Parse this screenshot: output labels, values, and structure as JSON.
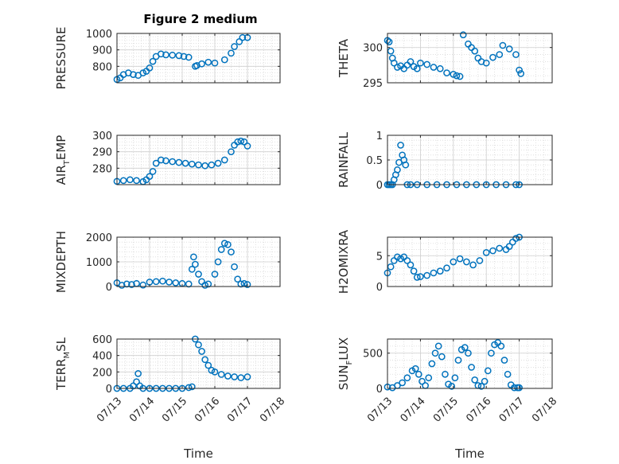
{
  "figure": {
    "title": "Figure 2 medium"
  },
  "style": {
    "marker_color": "#0072BD",
    "grid_color": "#d9d9d9",
    "axis_color": "#262626"
  },
  "chart_data": [
    {
      "type": "scatter",
      "ylabel": "PRESSURE",
      "ylabel_sub": "",
      "xlabel": "",
      "ylim": [
        700,
        1000
      ],
      "yticks": [
        800,
        900,
        1000
      ],
      "xlim": [
        0,
        5
      ],
      "xticks": [
        0,
        1,
        2,
        3,
        4,
        5
      ],
      "xticklabels": [],
      "x": [
        0.0,
        0.1,
        0.2,
        0.35,
        0.5,
        0.65,
        0.8,
        0.9,
        1.0,
        1.1,
        1.2,
        1.35,
        1.5,
        1.7,
        1.9,
        2.05,
        2.2,
        2.4,
        2.45,
        2.6,
        2.8,
        3.0,
        3.3,
        3.5,
        3.6,
        3.75,
        3.85,
        4.0
      ],
      "y": [
        720,
        730,
        750,
        760,
        750,
        745,
        760,
        770,
        790,
        830,
        860,
        875,
        870,
        868,
        865,
        860,
        855,
        800,
        805,
        815,
        825,
        820,
        840,
        880,
        920,
        950,
        975,
        975
      ]
    },
    {
      "type": "scatter",
      "ylabel": "THETA",
      "ylabel_sub": "",
      "xlabel": "",
      "ylim": [
        295,
        302
      ],
      "yticks": [
        295,
        300
      ],
      "xlim": [
        0,
        5
      ],
      "xticks": [
        0,
        1,
        2,
        3,
        4,
        5
      ],
      "xticklabels": [],
      "x": [
        0.0,
        0.05,
        0.1,
        0.15,
        0.2,
        0.3,
        0.4,
        0.5,
        0.6,
        0.7,
        0.8,
        0.9,
        1.0,
        1.2,
        1.4,
        1.6,
        1.8,
        2.0,
        2.1,
        2.2,
        2.3,
        2.45,
        2.55,
        2.65,
        2.75,
        2.85,
        3.0,
        3.2,
        3.4,
        3.5,
        3.7,
        3.9,
        4.0,
        4.05
      ],
      "y": [
        301,
        300.8,
        299.5,
        298.5,
        297.8,
        297.2,
        297.4,
        297.0,
        297.5,
        298.0,
        297.3,
        297.0,
        297.8,
        297.6,
        297.2,
        297.0,
        296.4,
        296.2,
        296.0,
        295.9,
        301.8,
        300.5,
        300.0,
        299.5,
        298.5,
        298.0,
        297.8,
        298.6,
        299.0,
        300.3,
        299.8,
        299.0,
        296.8,
        296.3
      ]
    },
    {
      "type": "scatter",
      "ylabel": "AIR",
      "ylabel_sub": "T",
      "ylabel_rest": "EMP",
      "xlabel": "",
      "ylim": [
        270,
        300
      ],
      "yticks": [
        280,
        290,
        300
      ],
      "xlim": [
        0,
        5
      ],
      "xticks": [
        0,
        1,
        2,
        3,
        4,
        5
      ],
      "xticklabels": [],
      "x": [
        0.0,
        0.2,
        0.4,
        0.6,
        0.8,
        0.9,
        1.0,
        1.1,
        1.2,
        1.35,
        1.5,
        1.7,
        1.9,
        2.1,
        2.3,
        2.5,
        2.7,
        2.9,
        3.1,
        3.3,
        3.5,
        3.6,
        3.7,
        3.8,
        3.9,
        4.0
      ],
      "y": [
        272,
        272.5,
        273,
        272.5,
        271.8,
        273,
        275,
        278,
        283,
        285,
        284.5,
        284,
        283.5,
        283,
        282.5,
        282,
        281.5,
        282,
        283,
        285,
        290,
        294,
        296,
        296.5,
        296,
        293.5
      ]
    },
    {
      "type": "scatter",
      "ylabel": "RAINFALL",
      "ylabel_sub": "",
      "xlabel": "",
      "ylim": [
        0,
        1
      ],
      "yticks": [
        0,
        0.5,
        1
      ],
      "xlim": [
        0,
        5
      ],
      "xticks": [
        0,
        1,
        2,
        3,
        4,
        5
      ],
      "xticklabels": [],
      "x": [
        0.0,
        0.05,
        0.1,
        0.15,
        0.2,
        0.25,
        0.3,
        0.35,
        0.4,
        0.45,
        0.5,
        0.55,
        0.6,
        0.7,
        0.9,
        1.2,
        1.5,
        1.8,
        2.1,
        2.4,
        2.7,
        3.0,
        3.3,
        3.6,
        3.9,
        4.0
      ],
      "y": [
        0,
        0,
        0,
        0,
        0.1,
        0.2,
        0.3,
        0.45,
        0.8,
        0.6,
        0.5,
        0.4,
        0,
        0,
        0,
        0,
        0,
        0,
        0,
        0,
        0,
        0,
        0,
        0,
        0,
        0
      ]
    },
    {
      "type": "scatter",
      "ylabel": "MIXDEPTH",
      "ylabel_sub": "",
      "xlabel": "",
      "ylim": [
        0,
        2000
      ],
      "yticks": [
        0,
        1000,
        2000
      ],
      "xlim": [
        0,
        5
      ],
      "xticks": [
        0,
        1,
        2,
        3,
        4,
        5
      ],
      "xticklabels": [],
      "x": [
        0.0,
        0.15,
        0.3,
        0.45,
        0.6,
        0.8,
        1.0,
        1.2,
        1.4,
        1.6,
        1.8,
        2.0,
        2.2,
        2.3,
        2.35,
        2.4,
        2.5,
        2.6,
        2.7,
        2.8,
        3.0,
        3.1,
        3.2,
        3.3,
        3.4,
        3.5,
        3.6,
        3.7,
        3.8,
        3.9,
        4.0
      ],
      "y": [
        150,
        50,
        100,
        80,
        120,
        60,
        180,
        200,
        220,
        180,
        150,
        120,
        100,
        700,
        1200,
        900,
        500,
        200,
        50,
        100,
        500,
        1000,
        1500,
        1750,
        1700,
        1400,
        800,
        300,
        100,
        120,
        80
      ]
    },
    {
      "type": "scatter",
      "ylabel": "H2OMIXRA",
      "ylabel_sub": "",
      "xlabel": "",
      "ylim": [
        0,
        8
      ],
      "yticks": [
        0,
        5
      ],
      "xlim": [
        0,
        5
      ],
      "xticks": [
        0,
        1,
        2,
        3,
        4,
        5
      ],
      "xticklabels": [],
      "x": [
        0.0,
        0.1,
        0.2,
        0.3,
        0.4,
        0.5,
        0.6,
        0.7,
        0.8,
        0.9,
        1.0,
        1.2,
        1.4,
        1.6,
        1.8,
        2.0,
        2.2,
        2.4,
        2.6,
        2.8,
        3.0,
        3.2,
        3.4,
        3.6,
        3.7,
        3.8,
        3.9,
        4.0
      ],
      "y": [
        2.2,
        3.2,
        4.2,
        4.8,
        4.5,
        4.8,
        4.2,
        3.5,
        2.5,
        1.5,
        1.6,
        1.8,
        2.2,
        2.5,
        3.0,
        4.0,
        4.5,
        4.0,
        3.5,
        4.2,
        5.5,
        5.8,
        6.2,
        6.0,
        6.5,
        7.2,
        7.8,
        8.0
      ]
    },
    {
      "type": "scatter",
      "ylabel": "TERR",
      "ylabel_sub": "M",
      "ylabel_rest": "SL",
      "xlabel": "Time",
      "ylim": [
        0,
        600
      ],
      "yticks": [
        0,
        200,
        400,
        600
      ],
      "xlim": [
        0,
        5
      ],
      "xticks": [
        0,
        1,
        2,
        3,
        4,
        5
      ],
      "xticklabels": [
        "07/13",
        "07/14",
        "07/15",
        "07/16",
        "07/17",
        "07/18"
      ],
      "x": [
        0.0,
        0.2,
        0.4,
        0.5,
        0.6,
        0.65,
        0.7,
        0.8,
        1.0,
        1.2,
        1.4,
        1.6,
        1.8,
        2.0,
        2.2,
        2.3,
        2.4,
        2.5,
        2.6,
        2.7,
        2.8,
        2.9,
        3.0,
        3.2,
        3.4,
        3.6,
        3.8,
        4.0
      ],
      "y": [
        0,
        0,
        0,
        30,
        80,
        180,
        30,
        0,
        0,
        0,
        0,
        0,
        0,
        0,
        10,
        20,
        600,
        530,
        450,
        350,
        280,
        220,
        200,
        170,
        150,
        140,
        130,
        140
      ]
    },
    {
      "type": "scatter",
      "ylabel": "SUN",
      "ylabel_sub": "F",
      "ylabel_rest": "LUX",
      "xlabel": "Time",
      "ylim": [
        0,
        700
      ],
      "yticks": [
        0,
        500
      ],
      "xlim": [
        0,
        5
      ],
      "xticks": [
        0,
        1,
        2,
        3,
        4,
        5
      ],
      "xticklabels": [
        "07/13",
        "07/14",
        "07/15",
        "07/16",
        "07/17",
        "07/18"
      ],
      "x": [
        0.0,
        0.15,
        0.3,
        0.45,
        0.6,
        0.75,
        0.85,
        0.95,
        1.05,
        1.15,
        1.25,
        1.35,
        1.45,
        1.55,
        1.65,
        1.75,
        1.85,
        1.95,
        2.05,
        2.15,
        2.25,
        2.35,
        2.45,
        2.55,
        2.65,
        2.75,
        2.85,
        2.95,
        3.05,
        3.15,
        3.25,
        3.35,
        3.45,
        3.55,
        3.65,
        3.75,
        3.85,
        3.95,
        4.0
      ],
      "y": [
        20,
        10,
        40,
        80,
        150,
        250,
        280,
        200,
        100,
        40,
        150,
        350,
        500,
        600,
        450,
        200,
        60,
        30,
        150,
        400,
        550,
        580,
        500,
        300,
        120,
        40,
        30,
        100,
        250,
        500,
        620,
        650,
        600,
        400,
        200,
        50,
        10,
        10,
        10
      ]
    }
  ]
}
